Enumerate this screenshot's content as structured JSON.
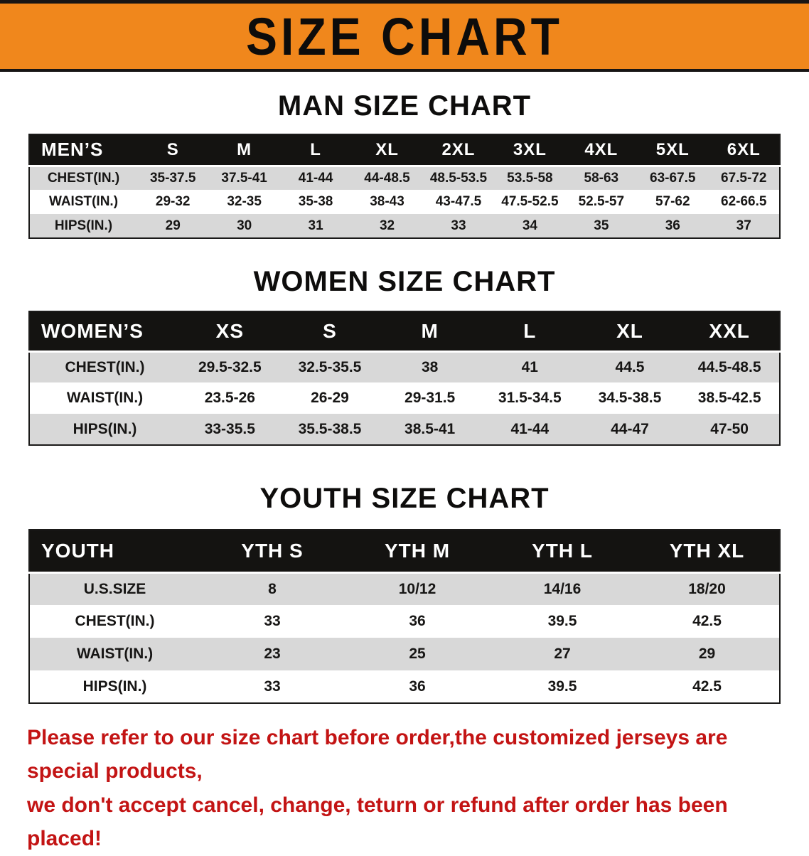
{
  "banner": {
    "title": "SIZE CHART"
  },
  "sections": [
    {
      "id": "men",
      "heading": "MAN SIZE CHART",
      "table": {
        "header": [
          "MEN’S",
          "S",
          "M",
          "L",
          "XL",
          "2XL",
          "3XL",
          "4XL",
          "5XL",
          "6XL"
        ],
        "rows": [
          [
            "CHEST(IN.)",
            "35-37.5",
            "37.5-41",
            "41-44",
            "44-48.5",
            "48.5-53.5",
            "53.5-58",
            "58-63",
            "63-67.5",
            "67.5-72"
          ],
          [
            "WAIST(IN.)",
            "29-32",
            "32-35",
            "35-38",
            "38-43",
            "43-47.5",
            "47.5-52.5",
            "52.5-57",
            "57-62",
            "62-66.5"
          ],
          [
            "HIPS(IN.)",
            "29",
            "30",
            "31",
            "32",
            "33",
            "34",
            "35",
            "36",
            "37"
          ]
        ]
      }
    },
    {
      "id": "women",
      "heading": "WOMEN SIZE CHART",
      "table": {
        "header": [
          "WOMEN’S",
          "XS",
          "S",
          "M",
          "L",
          "XL",
          "XXL"
        ],
        "rows": [
          [
            "CHEST(IN.)",
            "29.5-32.5",
            "32.5-35.5",
            "38",
            "41",
            "44.5",
            "44.5-48.5"
          ],
          [
            "WAIST(IN.)",
            "23.5-26",
            "26-29",
            "29-31.5",
            "31.5-34.5",
            "34.5-38.5",
            "38.5-42.5"
          ],
          [
            "HIPS(IN.)",
            "33-35.5",
            "35.5-38.5",
            "38.5-41",
            "41-44",
            "44-47",
            "47-50"
          ]
        ]
      }
    },
    {
      "id": "youth",
      "heading": "YOUTH SIZE CHART",
      "table": {
        "header": [
          "YOUTH",
          "YTH S",
          "YTH M",
          "YTH L",
          "YTH XL"
        ],
        "rows": [
          [
            "U.S.SIZE",
            "8",
            "10/12",
            "14/16",
            "18/20"
          ],
          [
            "CHEST(IN.)",
            "33",
            "36",
            "39.5",
            "42.5"
          ],
          [
            "WAIST(IN.)",
            "23",
            "25",
            "27",
            "29"
          ],
          [
            "HIPS(IN.)",
            "33",
            "36",
            "39.5",
            "42.5"
          ]
        ]
      }
    }
  ],
  "disclaimer": {
    "lines": [
      "Please refer to our size chart before order,the customized jerseys are special products,",
      "we don't accept cancel, change, teturn or refund after order has been placed!"
    ]
  },
  "colors": {
    "banner-bg": "#F0871C",
    "header-bg": "#141311",
    "stripe": "#D8D8D8",
    "disclaimer": "#C31414"
  }
}
